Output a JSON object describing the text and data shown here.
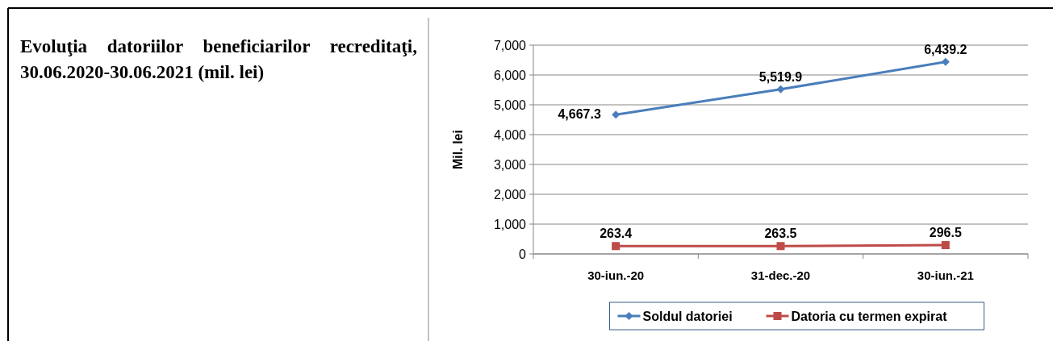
{
  "chart_data": {
    "type": "line",
    "title": "Evoluţia datoriilor beneficiarilor recreditaţi, 30.06.2020-30.06.2021 (mil. lei)",
    "ylabel": "Mil. lei",
    "categories": [
      "30-iun.-20",
      "31-dec.-20",
      "30-iun.-21"
    ],
    "series": [
      {
        "name": "Soldul datoriei",
        "color": "#4a7ebb",
        "values": [
          4667.3,
          5519.9,
          6439.2
        ],
        "value_labels": [
          "4,667.3",
          "5,519.9",
          "6,439.2"
        ],
        "marker": "diamond"
      },
      {
        "name": "Datoria cu termen expirat",
        "color": "#be4b48",
        "values": [
          263.4,
          263.5,
          296.5
        ],
        "value_labels": [
          "263.4",
          "263.5",
          "296.5"
        ],
        "marker": "square"
      }
    ],
    "ylim": [
      0,
      7000
    ],
    "yticks": [
      {
        "value": 0,
        "label": "0"
      },
      {
        "value": 1000,
        "label": "1,000"
      },
      {
        "value": 2000,
        "label": "2,000"
      },
      {
        "value": 3000,
        "label": "3,000"
      },
      {
        "value": 4000,
        "label": "4,000"
      },
      {
        "value": 5000,
        "label": "5,000"
      },
      {
        "value": 6000,
        "label": "6,000"
      },
      {
        "value": 7000,
        "label": "7,000"
      }
    ],
    "grid": "y",
    "legend": "bottom"
  }
}
